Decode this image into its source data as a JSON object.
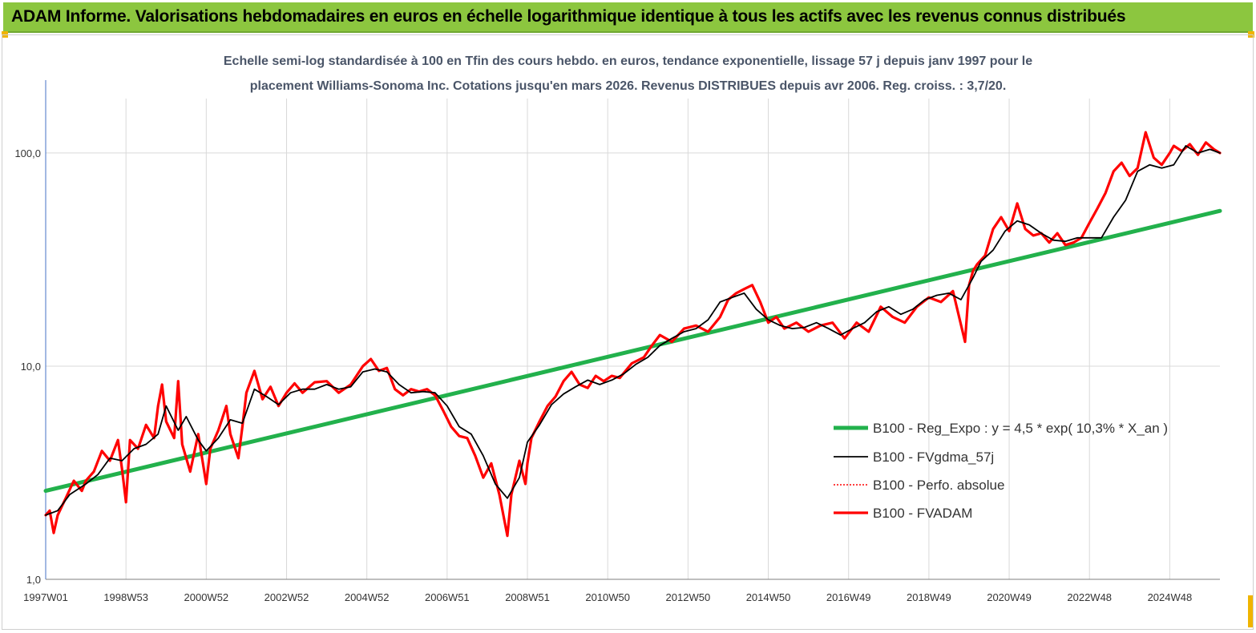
{
  "banner": {
    "title": "ADAM Informe. Valorisations hebdomadaires en euros en échelle logarithmique identique à tous les actifs avec les revenus connus distribués"
  },
  "colors": {
    "banner": "#8cc63f",
    "regression": "#22b14c",
    "fvgdma": "#000000",
    "perfo": "#ff0000",
    "fvadam": "#ff0000",
    "axis": "#4472c4",
    "grid": "#d9d9d9"
  },
  "chart_data": {
    "type": "line",
    "title_line1": "Echelle semi-log standardisée à 100 en Tfin des cours hebdo. en euros, tendance exponentielle, lissage 57 j depuis janv 1997 pour le",
    "title_line2": "placement Williams-Sonoma Inc. Cotations jusqu'en mars 2026. Revenus DISTRIBUES depuis avr 2006. Reg. croiss. : 3,7/20.",
    "y_scale": "log",
    "ylim": [
      1,
      180
    ],
    "xlim": [
      1997.0,
      2026.25
    ],
    "y_ticks": [
      1,
      10,
      100
    ],
    "y_tick_labels": [
      "1,0",
      "10,0",
      "100,0"
    ],
    "x_ticks": [
      1997.0,
      1999.0,
      2001.0,
      2003.0,
      2005.0,
      2007.0,
      2009.0,
      2011.0,
      2013.0,
      2015.0,
      2017.0,
      2019.0,
      2021.0,
      2023.0,
      2025.0
    ],
    "x_tick_labels": [
      "1997W01",
      "1998W53",
      "2000W52",
      "2002W52",
      "2004W52",
      "2006W51",
      "2008W51",
      "2010W50",
      "2012W50",
      "2014W50",
      "2016W49",
      "2018W49",
      "2020W49",
      "2022W48",
      "2024W48"
    ],
    "grid": true,
    "legend_position": "right",
    "series": [
      {
        "name": "B100 - Reg_Expo : y = 4,5 * exp( 10,3% *  X_an )",
        "style": "thick-green",
        "x": [
          1997.0,
          2026.25
        ],
        "y": [
          2.6,
          53.5
        ]
      },
      {
        "name": "B100 - FVgdma_57j",
        "style": "thin-black",
        "x": [
          1997.0,
          1997.3,
          1997.6,
          1998.0,
          1998.3,
          1998.6,
          1998.9,
          1999.2,
          1999.5,
          1999.8,
          2000.0,
          2000.3,
          2000.5,
          2000.8,
          2001.0,
          2001.3,
          2001.6,
          2001.9,
          2002.2,
          2002.5,
          2002.8,
          2003.1,
          2003.4,
          2003.7,
          2004.0,
          2004.3,
          2004.6,
          2004.9,
          2005.2,
          2005.5,
          2005.8,
          2006.1,
          2006.4,
          2006.7,
          2007.0,
          2007.3,
          2007.6,
          2007.9,
          2008.2,
          2008.5,
          2008.8,
          2009.0,
          2009.3,
          2009.6,
          2009.9,
          2010.2,
          2010.5,
          2010.8,
          2011.1,
          2011.4,
          2011.7,
          2012.0,
          2012.3,
          2012.6,
          2012.9,
          2013.2,
          2013.5,
          2013.8,
          2014.1,
          2014.4,
          2014.7,
          2015.0,
          2015.3,
          2015.6,
          2015.9,
          2016.2,
          2016.5,
          2016.8,
          2017.1,
          2017.4,
          2017.7,
          2018.0,
          2018.3,
          2018.6,
          2018.9,
          2019.2,
          2019.5,
          2019.8,
          2020.1,
          2020.3,
          2020.6,
          2020.9,
          2021.2,
          2021.5,
          2021.8,
          2022.1,
          2022.4,
          2022.7,
          2023.0,
          2023.3,
          2023.6,
          2023.9,
          2024.2,
          2024.5,
          2024.8,
          2025.1,
          2025.4,
          2025.7,
          2026.0,
          2026.25
        ],
        "y": [
          2.0,
          2.1,
          2.5,
          2.8,
          3.1,
          3.7,
          3.6,
          4.1,
          4.3,
          4.8,
          6.5,
          5.0,
          5.8,
          4.5,
          4.0,
          4.6,
          5.6,
          5.4,
          7.8,
          7.2,
          6.6,
          7.5,
          7.8,
          7.8,
          8.2,
          7.8,
          8.0,
          9.4,
          9.7,
          9.4,
          8.2,
          7.5,
          7.6,
          7.5,
          6.5,
          5.2,
          4.8,
          3.8,
          2.8,
          2.4,
          3.0,
          4.4,
          5.3,
          6.6,
          7.4,
          8.0,
          8.6,
          8.2,
          8.6,
          9.2,
          10.2,
          11.0,
          12.5,
          13.5,
          14.5,
          15.0,
          16.5,
          20.0,
          21.0,
          22.0,
          18.5,
          16.5,
          15.5,
          15.0,
          15.2,
          16.0,
          15.0,
          14.0,
          15.0,
          16.0,
          18.0,
          19.0,
          17.5,
          18.5,
          20.5,
          21.5,
          22.0,
          20.5,
          26.0,
          31.0,
          35.0,
          43.0,
          48.0,
          46.0,
          42.0,
          39.0,
          38.5,
          40.0,
          40.0,
          40.0,
          50.0,
          60.0,
          82.0,
          88.0,
          85.0,
          88.0,
          108.0,
          100.0,
          104.0,
          100.0
        ]
      },
      {
        "name": "B100 - Perfo. absolue",
        "style": "dotted-red",
        "x": [],
        "y": []
      },
      {
        "name": "B100 - FVADAM",
        "style": "thick-red",
        "x": [
          1997.0,
          1997.1,
          1997.2,
          1997.3,
          1997.5,
          1997.7,
          1997.9,
          1998.0,
          1998.2,
          1998.4,
          1998.6,
          1998.8,
          1998.9,
          1999.0,
          1999.1,
          1999.3,
          1999.5,
          1999.7,
          1999.8,
          1999.9,
          2000.0,
          2000.2,
          2000.3,
          2000.4,
          2000.6,
          2000.8,
          2001.0,
          2001.1,
          2001.3,
          2001.5,
          2001.6,
          2001.8,
          2001.9,
          2002.0,
          2002.2,
          2002.4,
          2002.6,
          2002.8,
          2003.0,
          2003.2,
          2003.4,
          2003.7,
          2004.0,
          2004.3,
          2004.6,
          2004.9,
          2005.1,
          2005.3,
          2005.5,
          2005.7,
          2005.9,
          2006.1,
          2006.3,
          2006.5,
          2006.7,
          2006.9,
          2007.1,
          2007.3,
          2007.5,
          2007.7,
          2007.9,
          2008.1,
          2008.3,
          2008.5,
          2008.6,
          2008.8,
          2008.95,
          2009.0,
          2009.1,
          2009.3,
          2009.5,
          2009.7,
          2009.9,
          2010.1,
          2010.3,
          2010.5,
          2010.7,
          2010.9,
          2011.1,
          2011.3,
          2011.6,
          2011.9,
          2012.1,
          2012.3,
          2012.6,
          2012.9,
          2013.2,
          2013.5,
          2013.8,
          2014.0,
          2014.2,
          2014.4,
          2014.6,
          2014.8,
          2015.0,
          2015.2,
          2015.4,
          2015.7,
          2016.0,
          2016.3,
          2016.6,
          2016.9,
          2017.2,
          2017.5,
          2017.8,
          2018.1,
          2018.4,
          2018.7,
          2019.0,
          2019.3,
          2019.6,
          2019.9,
          2020.0,
          2020.1,
          2020.2,
          2020.4,
          2020.6,
          2020.8,
          2021.0,
          2021.2,
          2021.4,
          2021.6,
          2021.8,
          2022.0,
          2022.2,
          2022.4,
          2022.6,
          2022.8,
          2023.0,
          2023.2,
          2023.4,
          2023.6,
          2023.8,
          2024.0,
          2024.2,
          2024.4,
          2024.6,
          2024.8,
          2025.0,
          2025.1,
          2025.3,
          2025.5,
          2025.7,
          2025.9,
          2026.1,
          2026.25
        ],
        "y": [
          2.0,
          2.1,
          1.65,
          2.0,
          2.4,
          2.9,
          2.6,
          2.9,
          3.2,
          4.0,
          3.6,
          4.5,
          3.3,
          2.3,
          4.5,
          4.1,
          5.3,
          4.6,
          6.5,
          8.2,
          5.5,
          4.6,
          8.5,
          4.3,
          3.2,
          4.8,
          2.8,
          4.1,
          5.0,
          6.5,
          4.8,
          3.7,
          5.2,
          7.5,
          9.5,
          7.0,
          8.0,
          6.5,
          7.5,
          8.3,
          7.5,
          8.4,
          8.5,
          7.5,
          8.2,
          10.0,
          10.8,
          9.5,
          9.8,
          7.8,
          7.3,
          7.8,
          7.6,
          7.8,
          7.3,
          6.2,
          5.2,
          4.7,
          4.6,
          3.8,
          3.0,
          3.5,
          2.5,
          1.6,
          2.5,
          3.6,
          2.8,
          3.5,
          4.6,
          5.5,
          6.5,
          7.2,
          8.5,
          9.4,
          8.2,
          7.9,
          9.0,
          8.5,
          9.0,
          8.8,
          10.3,
          11.0,
          12.5,
          14.0,
          13.0,
          15.0,
          15.5,
          14.5,
          17.0,
          20.5,
          22.0,
          23.0,
          24.0,
          20.0,
          16.0,
          17.0,
          15.0,
          16.0,
          14.5,
          15.5,
          16.0,
          13.5,
          16.0,
          14.5,
          19.0,
          17.0,
          16.0,
          19.0,
          21.0,
          20.0,
          22.5,
          13.0,
          24.0,
          28.0,
          30.0,
          33.0,
          44.0,
          50.0,
          43.0,
          58.0,
          44.0,
          41.0,
          42.0,
          38.0,
          42.0,
          37.0,
          38.0,
          40.0,
          47.0,
          55.0,
          65.0,
          82.0,
          90.0,
          78.0,
          85.0,
          125.0,
          95.0,
          88.0,
          100.0,
          108.0,
          102.0,
          110.0,
          98.0,
          112.0,
          104.0,
          100.0
        ]
      }
    ]
  }
}
